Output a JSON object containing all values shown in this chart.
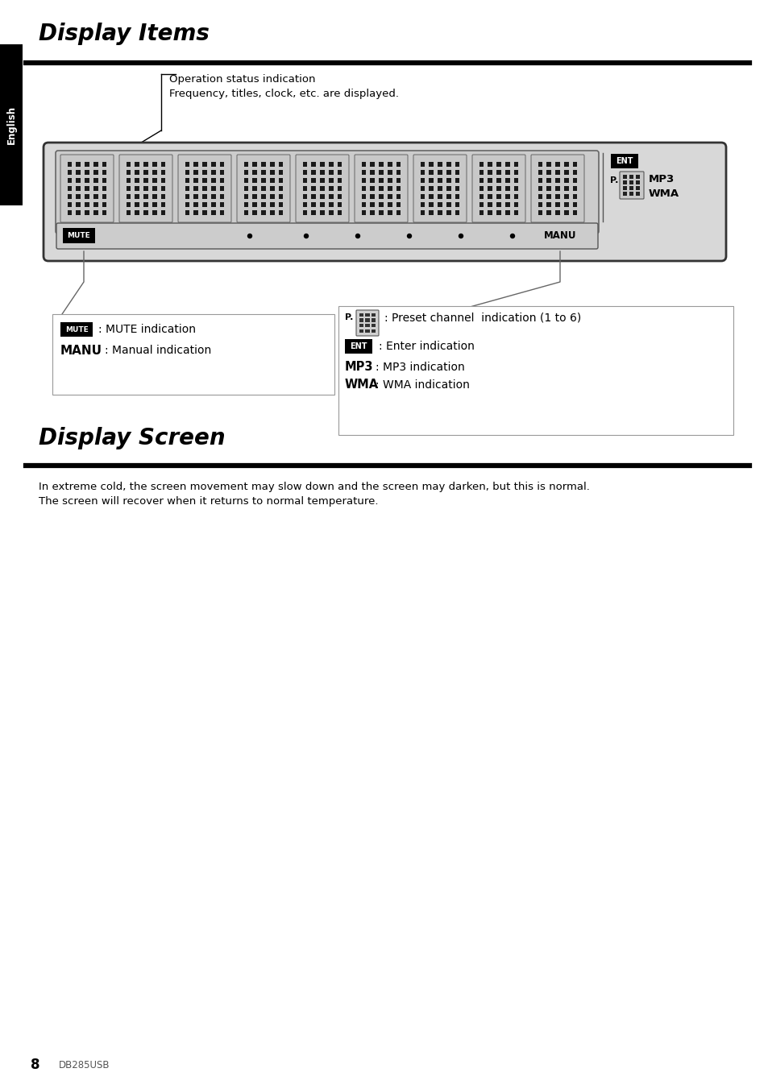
{
  "title1": "Display Items",
  "title2": "Display Screen",
  "bg_color": "#ffffff",
  "tab_text": "English",
  "annotation_line1": "Operation status indication",
  "annotation_line2": "Frequency, titles, clock, etc. are displayed.",
  "mute_label": "MUTE",
  "manu_label": "MANU",
  "mp3_label": "MP3",
  "wma_label": "WMA",
  "ent_label": "ENT",
  "p_label": "P.",
  "desc_mute": ": MUTE indication",
  "desc_manu": ": Manual indication",
  "desc_preset": ": Preset channel  indication (1 to 6)",
  "desc_enter": ": Enter indication",
  "desc_mp3": ": MP3 indication",
  "desc_wma": ": WMA indication",
  "display_screen_text1": "In extreme cold, the screen movement may slow down and the screen may darken, but this is normal.",
  "display_screen_text2": "The screen will recover when it returns to normal temperature.",
  "page_number": "8",
  "model": "DB285USB"
}
